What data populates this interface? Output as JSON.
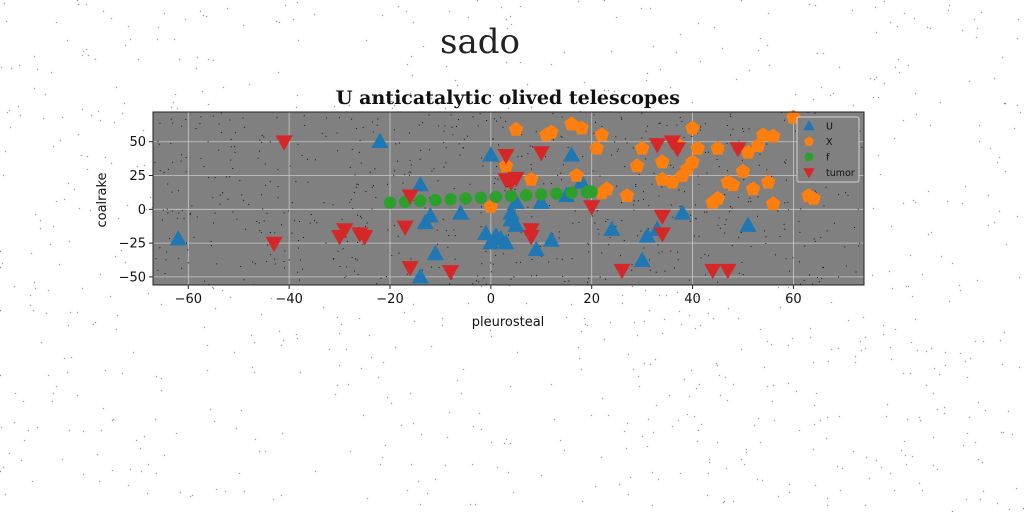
{
  "suptitle": "sado",
  "chart_data": {
    "type": "scatter",
    "title": "U anticatalytic olived telescopes",
    "xlabel": "pleurosteal",
    "ylabel": "coalrake",
    "xlim": [
      -67,
      74
    ],
    "ylim": [
      -56,
      72
    ],
    "xticks": [
      -60,
      -40,
      -20,
      0,
      20,
      40,
      60
    ],
    "yticks": [
      -50,
      -25,
      0,
      25,
      50
    ],
    "grid": true,
    "background": "#808080",
    "legend_position": "top-right",
    "series": [
      {
        "name": "U",
        "marker": "triangle-up",
        "color": "#1f77b4",
        "points": [
          [
            -62,
            -22
          ],
          [
            -22,
            50
          ],
          [
            -14,
            18
          ],
          [
            -13,
            -10
          ],
          [
            -12,
            -5
          ],
          [
            -11,
            -33
          ],
          [
            -14,
            -50
          ],
          [
            -6,
            -3
          ],
          [
            -1,
            -18
          ],
          [
            0,
            40
          ],
          [
            0,
            -25
          ],
          [
            1,
            -20
          ],
          [
            2,
            -22
          ],
          [
            3,
            -25
          ],
          [
            4,
            -8
          ],
          [
            5,
            -12
          ],
          [
            5,
            5
          ],
          [
            4,
            -3
          ],
          [
            9,
            -30
          ],
          [
            10,
            5
          ],
          [
            12,
            -23
          ],
          [
            15,
            10
          ],
          [
            16,
            40
          ],
          [
            18,
            20
          ],
          [
            24,
            -15
          ],
          [
            30,
            -38
          ],
          [
            31,
            -20
          ],
          [
            33,
            -15
          ],
          [
            38,
            -3
          ],
          [
            51,
            -12
          ]
        ]
      },
      {
        "name": "X",
        "marker": "pentagon",
        "color": "#ff7f0e",
        "points": [
          [
            0,
            2
          ],
          [
            3,
            32
          ],
          [
            5,
            59
          ],
          [
            8,
            22
          ],
          [
            11,
            55
          ],
          [
            12,
            57
          ],
          [
            16,
            63
          ],
          [
            18,
            60
          ],
          [
            17,
            25
          ],
          [
            21,
            45
          ],
          [
            22,
            55
          ],
          [
            23,
            15
          ],
          [
            22,
            12
          ],
          [
            27,
            10
          ],
          [
            29,
            32
          ],
          [
            30,
            45
          ],
          [
            34,
            35
          ],
          [
            34,
            22
          ],
          [
            36,
            20
          ],
          [
            37,
            48
          ],
          [
            38,
            25
          ],
          [
            39,
            30
          ],
          [
            40,
            35
          ],
          [
            40,
            60
          ],
          [
            41,
            45
          ],
          [
            44,
            5
          ],
          [
            45,
            8
          ],
          [
            45,
            45
          ],
          [
            47,
            20
          ],
          [
            48,
            18
          ],
          [
            50,
            28
          ],
          [
            51,
            42
          ],
          [
            52,
            15
          ],
          [
            53,
            47
          ],
          [
            54,
            55
          ],
          [
            56,
            54
          ],
          [
            55,
            20
          ],
          [
            56,
            4
          ],
          [
            60,
            68
          ],
          [
            63,
            10
          ],
          [
            64,
            8
          ]
        ]
      },
      {
        "name": "f",
        "marker": "circle",
        "color": "#2ca02c",
        "points": [
          [
            -20,
            5
          ],
          [
            -17,
            5.6
          ],
          [
            -14,
            6.2
          ],
          [
            -11,
            6.8
          ],
          [
            -8,
            7.4
          ],
          [
            -5,
            8
          ],
          [
            -2,
            8.6
          ],
          [
            1,
            9.2
          ],
          [
            4,
            9.8
          ],
          [
            7,
            10.4
          ],
          [
            10,
            11
          ],
          [
            13,
            11.6
          ],
          [
            16,
            12.2
          ],
          [
            19,
            12.8
          ],
          [
            20,
            13
          ]
        ]
      },
      {
        "name": "tumor",
        "marker": "triangle-down",
        "color": "#d62728",
        "points": [
          [
            -41,
            50
          ],
          [
            -43,
            -25
          ],
          [
            -30,
            -20
          ],
          [
            -29,
            -15
          ],
          [
            -26,
            -18
          ],
          [
            -25,
            -20
          ],
          [
            -17,
            -13
          ],
          [
            -16,
            10
          ],
          [
            -16,
            -43
          ],
          [
            -8,
            -46
          ],
          [
            3,
            40
          ],
          [
            3,
            22
          ],
          [
            4,
            20
          ],
          [
            5,
            23
          ],
          [
            8,
            -15
          ],
          [
            8,
            -20
          ],
          [
            10,
            42
          ],
          [
            20,
            2
          ],
          [
            26,
            -45
          ],
          [
            33,
            48
          ],
          [
            34,
            -18
          ],
          [
            34,
            -5
          ],
          [
            36,
            50
          ],
          [
            37,
            45
          ],
          [
            44,
            -45
          ],
          [
            47,
            -45
          ],
          [
            49,
            45
          ]
        ]
      }
    ]
  }
}
